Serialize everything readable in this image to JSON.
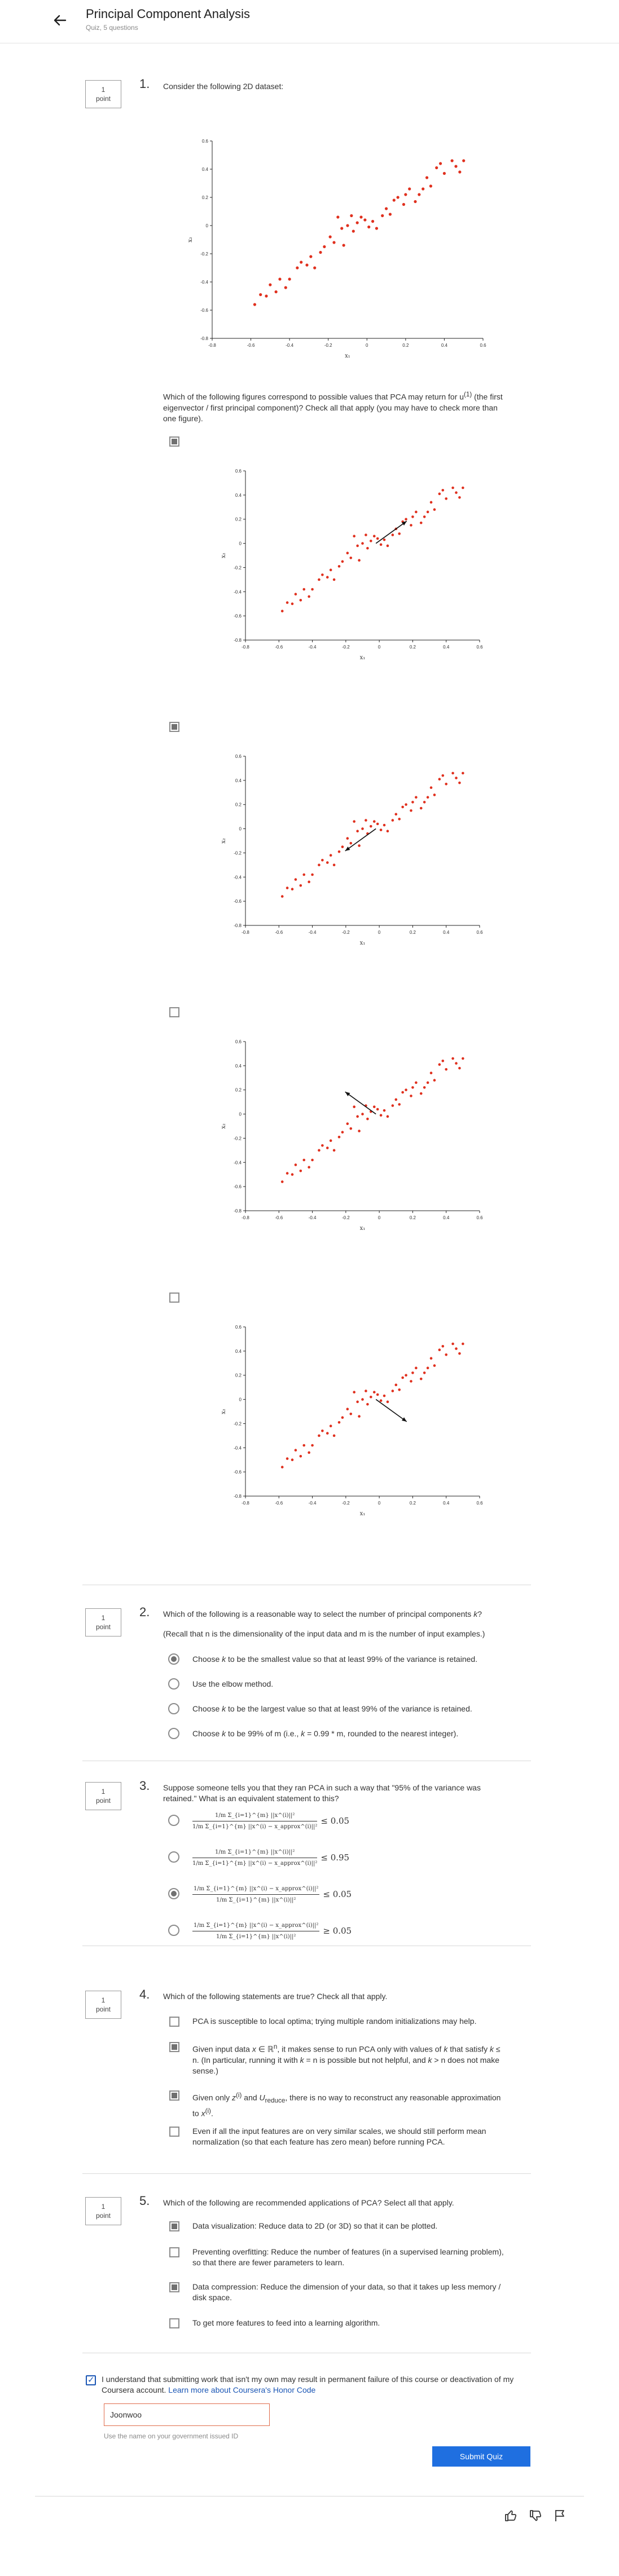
{
  "header": {
    "title": "Principal Component Analysis",
    "subtitle": "Quiz, 5 questions"
  },
  "point_label": "1\npoint",
  "q1": {
    "number": "1.",
    "prompt": "Consider the following 2D dataset:",
    "question_html": "Which of the following figures correspond to possible values that PCA may return for u<sup>(1)</sup> (the first eigenvector / first principal component)? Check all that apply (you may have to check more than one figure).",
    "options": [
      {
        "checked": true,
        "arrow": "up-right"
      },
      {
        "checked": true,
        "arrow": "down-left"
      },
      {
        "checked": false,
        "arrow": "up-left"
      },
      {
        "checked": false,
        "arrow": "down-right"
      }
    ]
  },
  "chart_data": [
    {
      "type": "scatter",
      "xlabel": "x₁",
      "ylabel": "x₂",
      "xlim": [
        -0.8,
        0.6
      ],
      "ylim": [
        -0.8,
        0.6
      ],
      "x_ticks": [
        "-0.8",
        "-0.6",
        "-0.4",
        "-0.2",
        "0",
        "0.2",
        "0.4",
        "0.6"
      ],
      "y_ticks": [
        "-0.8",
        "-0.6",
        "-0.4",
        "-0.2",
        "0",
        "0.2",
        "0.4",
        "0.6"
      ],
      "color": "#e0301e",
      "points": [
        [
          -0.58,
          -0.56
        ],
        [
          -0.55,
          -0.49
        ],
        [
          -0.52,
          -0.5
        ],
        [
          -0.5,
          -0.42
        ],
        [
          -0.47,
          -0.47
        ],
        [
          -0.45,
          -0.38
        ],
        [
          -0.42,
          -0.44
        ],
        [
          -0.4,
          -0.38
        ],
        [
          -0.36,
          -0.3
        ],
        [
          -0.34,
          -0.26
        ],
        [
          -0.31,
          -0.28
        ],
        [
          -0.29,
          -0.22
        ],
        [
          -0.27,
          -0.3
        ],
        [
          -0.24,
          -0.19
        ],
        [
          -0.22,
          -0.15
        ],
        [
          -0.19,
          -0.08
        ],
        [
          -0.17,
          -0.12
        ],
        [
          -0.15,
          0.06
        ],
        [
          -0.13,
          -0.02
        ],
        [
          -0.12,
          -0.14
        ],
        [
          -0.1,
          0.0
        ],
        [
          -0.08,
          0.07
        ],
        [
          -0.07,
          -0.04
        ],
        [
          -0.05,
          0.02
        ],
        [
          -0.03,
          0.06
        ],
        [
          -0.01,
          0.04
        ],
        [
          0.01,
          -0.01
        ],
        [
          0.03,
          0.03
        ],
        [
          0.05,
          -0.02
        ],
        [
          0.08,
          0.07
        ],
        [
          0.1,
          0.12
        ],
        [
          0.12,
          0.08
        ],
        [
          0.14,
          0.18
        ],
        [
          0.16,
          0.2
        ],
        [
          0.19,
          0.15
        ],
        [
          0.2,
          0.22
        ],
        [
          0.22,
          0.26
        ],
        [
          0.25,
          0.17
        ],
        [
          0.27,
          0.22
        ],
        [
          0.29,
          0.26
        ],
        [
          0.31,
          0.34
        ],
        [
          0.33,
          0.28
        ],
        [
          0.36,
          0.41
        ],
        [
          0.38,
          0.44
        ],
        [
          0.4,
          0.37
        ],
        [
          0.44,
          0.46
        ],
        [
          0.46,
          0.42
        ],
        [
          0.48,
          0.38
        ],
        [
          0.5,
          0.46
        ]
      ]
    }
  ],
  "q2": {
    "number": "2.",
    "prompt_html": "Which of the following is a reasonable way to select the number of principal components <i>k</i>?",
    "note": "(Recall that n is the dimensionality of the input data and m is the number of input examples.)",
    "options": [
      {
        "html": "Choose <i>k</i> to be the smallest value so that at least 99% of the variance is retained.",
        "checked": true
      },
      {
        "html": "Use the elbow method.",
        "checked": false
      },
      {
        "html": "Choose <i>k</i> to be the largest value so that at least 99% of the variance is retained.",
        "checked": false
      },
      {
        "html": "Choose <i>k</i> to be 99% of m (i.e., <i>k</i> = 0.99 * m, rounded to the nearest integer).",
        "checked": false
      }
    ]
  },
  "q3": {
    "number": "3.",
    "prompt": "Suppose someone tells you that they ran PCA in such a way that \"95% of the variance was retained.\" What is an equivalent statement to this?",
    "options": [
      {
        "num": "1/m Σ_{i=1}^{m} ||x^(i)||²",
        "den": "1/m Σ_{i=1}^{m} ||x^(i) − x_approx^(i)||²",
        "rel": "≤ 0.05",
        "checked": false
      },
      {
        "num": "1/m Σ_{i=1}^{m} ||x^(i)||²",
        "den": "1/m Σ_{i=1}^{m} ||x^(i) − x_approx^(i)||²",
        "rel": "≤ 0.95",
        "checked": false
      },
      {
        "num": "1/m Σ_{i=1}^{m} ||x^(i) − x_approx^(i)||²",
        "den": "1/m Σ_{i=1}^{m} ||x^(i)||²",
        "rel": "≤ 0.05",
        "checked": true
      },
      {
        "num": "1/m Σ_{i=1}^{m} ||x^(i) − x_approx^(i)||²",
        "den": "1/m Σ_{i=1}^{m} ||x^(i)||²",
        "rel": "≥ 0.05",
        "checked": false
      }
    ]
  },
  "q4": {
    "number": "4.",
    "prompt": "Which of the following statements are true? Check all that apply.",
    "options": [
      {
        "html": "PCA is susceptible to local optima; trying multiple random initializations may help.",
        "checked": false
      },
      {
        "html": "Given input data <i>x</i> ∈ ℝ<sup>n</sup>, it makes sense to run PCA only with values of <i>k</i> that satisfy <i>k</i> ≤ n. (In particular, running it with <i>k</i> = n is possible but not helpful, and <i>k</i> &gt; n does not make sense.)",
        "checked": true
      },
      {
        "html": "Given only <i>z</i><sup>(i)</sup> and <i>U</i><sub>reduce</sub>, there is no way to reconstruct any reasonable approximation to <i>x</i><sup>(i)</sup>.",
        "checked": true
      },
      {
        "html": "Even if all the input features are on very similar scales, we should still perform mean normalization (so that each feature has zero mean) before running PCA.",
        "checked": false
      }
    ]
  },
  "q5": {
    "number": "5.",
    "prompt": "Which of the following are recommended applications of PCA? Select all that apply.",
    "options": [
      {
        "html": "Data visualization: Reduce data to 2D (or 3D) so that it can be plotted.",
        "checked": true
      },
      {
        "html": "Preventing overfitting: Reduce the number of features (in a supervised learning problem), so that there are fewer parameters to learn.",
        "checked": false
      },
      {
        "html": "Data compression: Reduce the dimension of your data, so that it takes up less memory / disk space.",
        "checked": true
      },
      {
        "html": "To get more features to feed into a learning algorithm.",
        "checked": false
      }
    ]
  },
  "honor": {
    "text": "I understand that submitting work that isn't my own may result in permanent failure of this course or deactivation of my Coursera account.",
    "link": "Learn more about Coursera's Honor Code",
    "name_value": "Joonwoo",
    "hint": "Use the name on your government issued ID",
    "submit_label": "Submit Quiz"
  },
  "icons": [
    "back-arrow-icon",
    "thumbs-up-icon",
    "thumbs-down-icon",
    "flag-icon"
  ],
  "colors": {
    "accent": "#1f6fe0",
    "data": "#e0301e",
    "error_border": "#e06b4b"
  }
}
